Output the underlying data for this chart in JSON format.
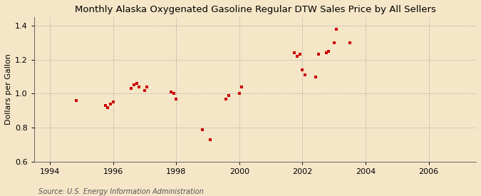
{
  "title": "Monthly Alaska Oxygenated Gasoline Regular DTW Sales Price by All Sellers",
  "ylabel": "Dollars per Gallon",
  "source": "Source: U.S. Energy Information Administration",
  "background_color": "#f5e6c8",
  "marker_color": "#cc0000",
  "xlim": [
    1993.5,
    2007.5
  ],
  "ylim": [
    0.6,
    1.45
  ],
  "yticks": [
    0.6,
    0.8,
    1.0,
    1.2,
    1.4
  ],
  "xticks": [
    1994,
    1996,
    1998,
    2000,
    2002,
    2004,
    2006
  ],
  "data_x": [
    1994.83,
    1995.75,
    1995.83,
    1995.92,
    1996.0,
    1996.58,
    1996.67,
    1996.75,
    1996.83,
    1997.0,
    1997.08,
    1997.83,
    1997.92,
    1998.0,
    1998.83,
    1999.08,
    1999.58,
    1999.67,
    2000.0,
    2000.08,
    2001.75,
    2001.83,
    2001.92,
    2002.0,
    2002.08,
    2002.42,
    2002.5,
    2002.75,
    2002.83,
    2003.0,
    2003.08,
    2003.5
  ],
  "data_y": [
    0.96,
    0.93,
    0.92,
    0.94,
    0.95,
    1.03,
    1.05,
    1.06,
    1.04,
    1.02,
    1.04,
    1.01,
    1.0,
    0.97,
    0.79,
    0.73,
    0.97,
    0.99,
    1.0,
    1.04,
    1.24,
    1.22,
    1.23,
    1.14,
    1.11,
    1.1,
    1.23,
    1.24,
    1.25,
    1.3,
    1.38,
    1.3
  ]
}
